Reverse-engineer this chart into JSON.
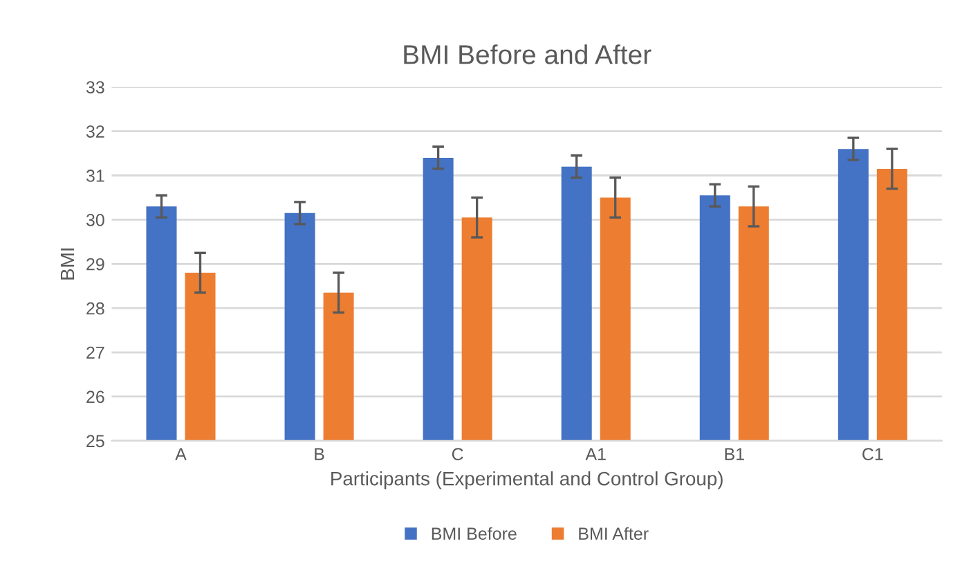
{
  "chart_data": {
    "type": "bar",
    "title": "BMI Before and After",
    "xlabel": "Participants (Experimental and Control Group)",
    "ylabel": "BMI",
    "categories": [
      "A",
      "B",
      "C",
      "A1",
      "B1",
      "C1"
    ],
    "series": [
      {
        "name": "BMI Before",
        "color": "#4472c4",
        "values": [
          30.3,
          30.15,
          31.4,
          31.2,
          30.55,
          31.6
        ],
        "errors": [
          0.25,
          0.25,
          0.25,
          0.25,
          0.25,
          0.25
        ]
      },
      {
        "name": "BMI After",
        "color": "#ed7d31",
        "values": [
          28.8,
          28.35,
          30.05,
          30.5,
          30.3,
          31.15
        ],
        "errors": [
          0.45,
          0.45,
          0.45,
          0.45,
          0.45,
          0.45
        ]
      }
    ],
    "ylim": [
      25,
      33
    ],
    "yticks": [
      25,
      26,
      27,
      28,
      29,
      30,
      31,
      32,
      33
    ],
    "grid": "y",
    "legend": "bottom"
  }
}
